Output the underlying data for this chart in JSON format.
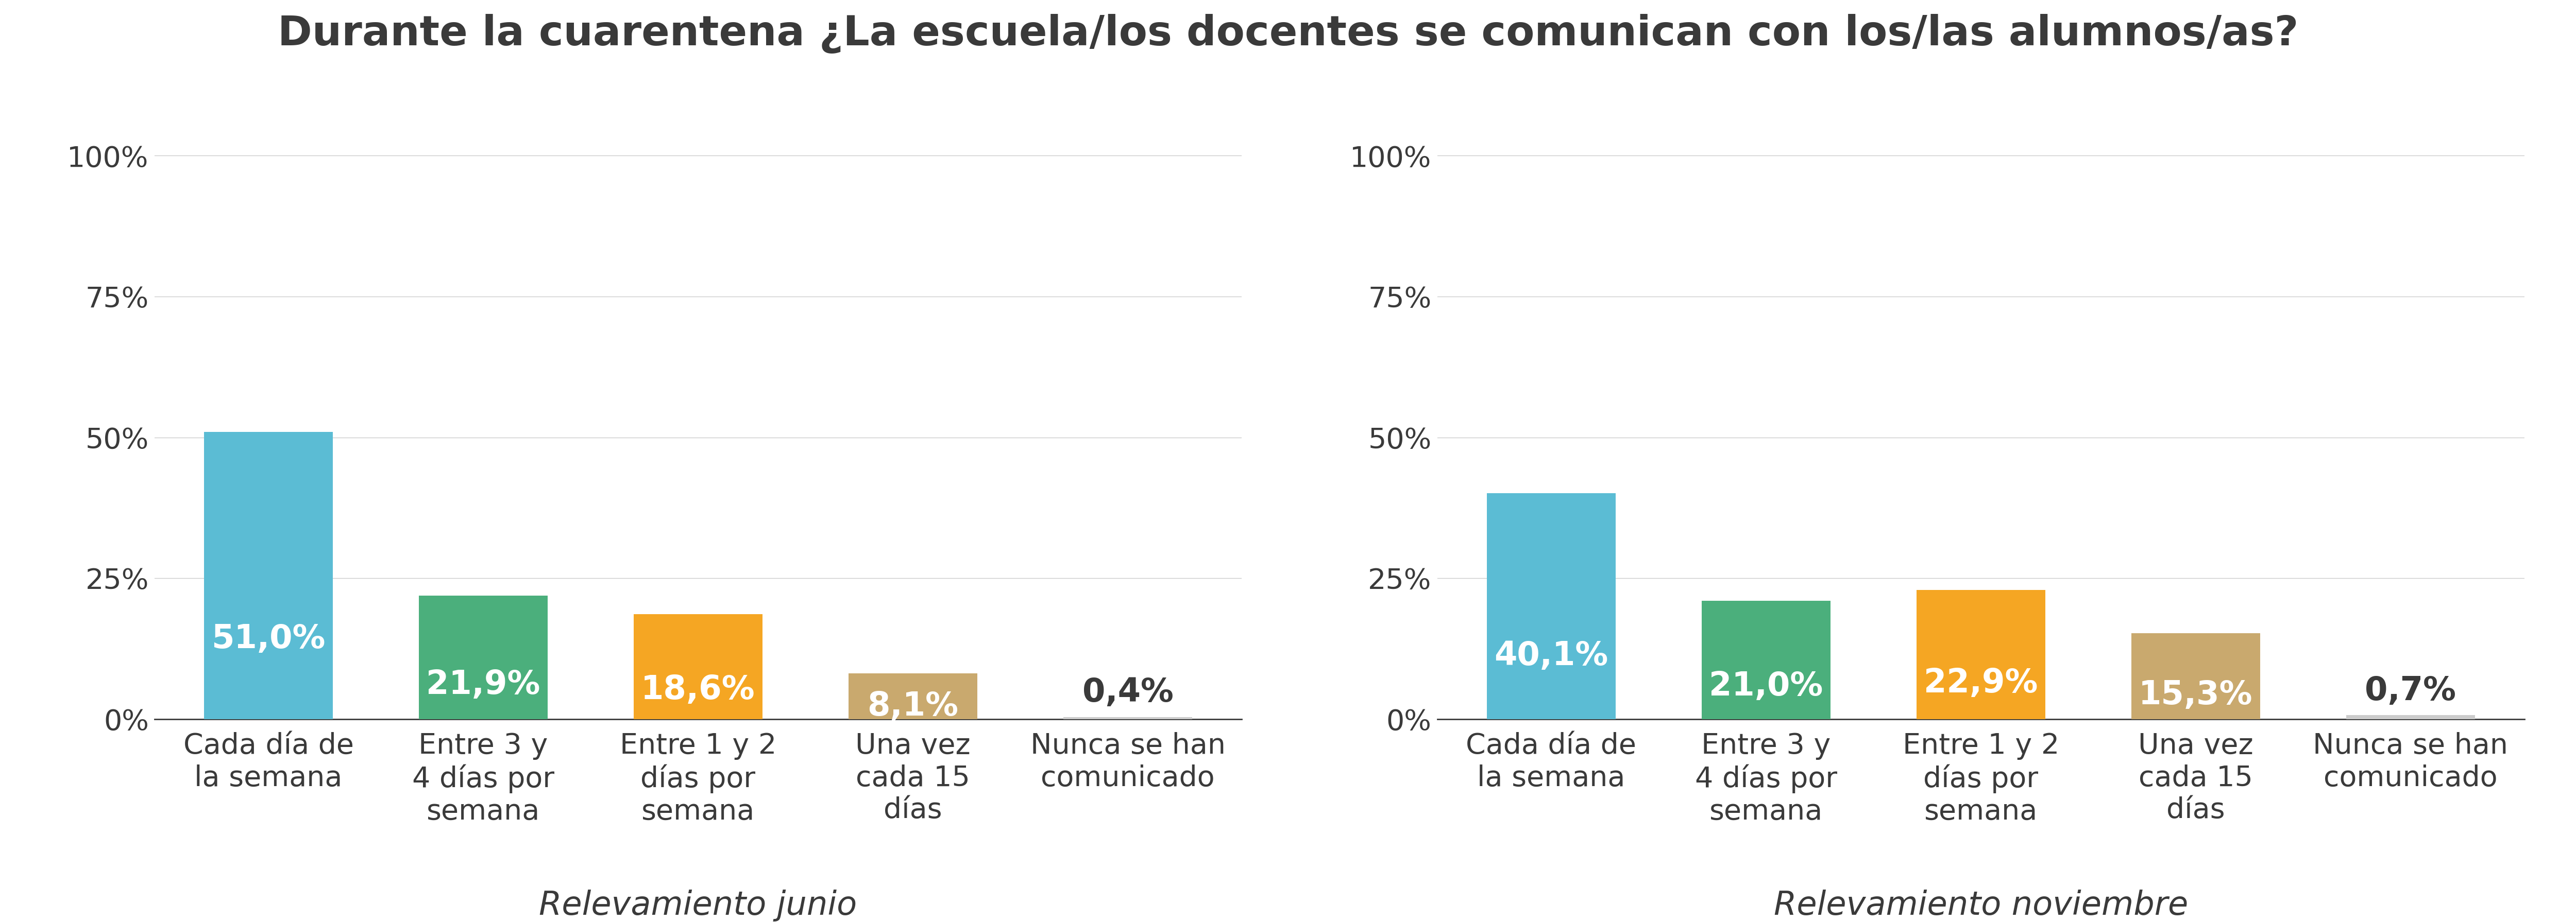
{
  "title": "Durante la cuarentena ¿La escuela/los docentes se comunican con los/las alumnos/as?",
  "title_fontsize": 58,
  "title_fontweight": "bold",
  "title_color": "#3a3a3a",
  "background_color": "#ffffff",
  "categories": [
    "Cada día de\nla semana",
    "Entre 3 y\n4 días por\nsemana",
    "Entre 1 y 2\ndías por\nsemana",
    "Una vez\ncada 15\ndías",
    "Nunca se han\ncomunicado"
  ],
  "junio_values": [
    51.0,
    21.9,
    18.6,
    8.1,
    0.4
  ],
  "noviembre_values": [
    40.1,
    21.0,
    22.9,
    15.3,
    0.7
  ],
  "junio_labels": [
    "51,0%",
    "21,9%",
    "18,6%",
    "8,1%",
    "0,4%"
  ],
  "noviembre_labels": [
    "40,1%",
    "21,0%",
    "22,9%",
    "15,3%",
    "0,7%"
  ],
  "colors": [
    "#5bbcd4",
    "#4baf7c",
    "#f5a623",
    "#c9a96e",
    "#cccccc"
  ],
  "label_junio": "Relevamiento junio",
  "label_noviembre": "Relevamiento noviembre",
  "subtitle_fontsize": 46,
  "bar_label_fontsize": 46,
  "tick_label_fontsize": 40,
  "ytick_label_fontsize": 40,
  "ytick_labels": [
    "0%",
    "25%",
    "50%",
    "75%",
    "100%"
  ],
  "ytick_values": [
    0,
    25,
    50,
    75,
    100
  ],
  "ylim": [
    0,
    108
  ],
  "grid_color": "#cccccc",
  "axis_color": "#3a3a3a",
  "bar_width": 0.6,
  "white_label_threshold": 3.0
}
